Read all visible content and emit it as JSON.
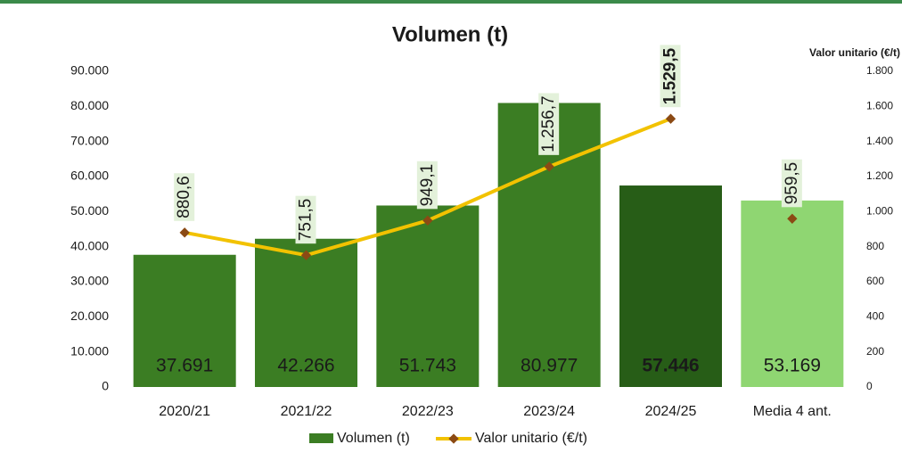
{
  "chart_data": {
    "type": "bar_line",
    "title": "Volumen (t)",
    "y2_label": "Valor unitario (€/t)",
    "categories": [
      "2020/21",
      "2021/22",
      "2022/23",
      "2023/24",
      "2024/25",
      "Media 4 ant."
    ],
    "series": [
      {
        "name": "Volumen (t)",
        "type": "bar",
        "color": "#3b7d23",
        "colors": [
          "#3b7d23",
          "#3b7d23",
          "#3b7d23",
          "#3b7d23",
          "#275d17",
          "#8fd672"
        ],
        "label_colors": [
          "#ffffff",
          "#ffffff",
          "#ffffff",
          "#ffffff",
          "#ffffff",
          "#1a1a1a"
        ],
        "bold": [
          false,
          false,
          false,
          false,
          true,
          false
        ],
        "values": [
          37691,
          42266,
          51743,
          80977,
          57446,
          53169
        ],
        "value_labels": [
          "37.691",
          "42.266",
          "51.743",
          "80.977",
          "57.446",
          "53.169"
        ]
      },
      {
        "name": "Valor unitario (€/t)",
        "type": "line",
        "axis": "y2",
        "color": "#f2c200",
        "marker_color": "#8b4a14",
        "bold": [
          false,
          false,
          false,
          false,
          true,
          false
        ],
        "connected": [
          true,
          true,
          true,
          true,
          true,
          false
        ],
        "values": [
          880.6,
          751.5,
          949.1,
          1256.7,
          1529.5,
          959.5
        ],
        "value_labels": [
          "880,6",
          "751,5",
          "949,1",
          "1.256,7",
          "1.529,5",
          "959,5"
        ]
      }
    ],
    "ylim": [
      0,
      90000
    ],
    "yticks": [
      0,
      {
        "value": 10000,
        "label": "10.000"
      },
      {
        "value": 20000,
        "label": "20.000"
      },
      {
        "value": 30000,
        "label": "30.000"
      },
      {
        "value": 40000,
        "label": "40.000"
      },
      {
        "value": 50000,
        "label": "50.000"
      },
      {
        "value": 60000,
        "label": "60.000"
      },
      {
        "value": 70000,
        "label": "70.000"
      },
      {
        "value": 80000,
        "label": "80.000"
      },
      {
        "value": 90000,
        "label": "90.000"
      }
    ],
    "y2lim": [
      0,
      1800
    ],
    "y2ticks": [
      0,
      200,
      400,
      600,
      800,
      {
        "value": 1000,
        "label": "1.000"
      },
      {
        "value": 1200,
        "label": "1.200"
      },
      {
        "value": 1400,
        "label": "1.400"
      },
      {
        "value": 1600,
        "label": "1.600"
      },
      {
        "value": 1800,
        "label": "1.800"
      }
    ]
  }
}
